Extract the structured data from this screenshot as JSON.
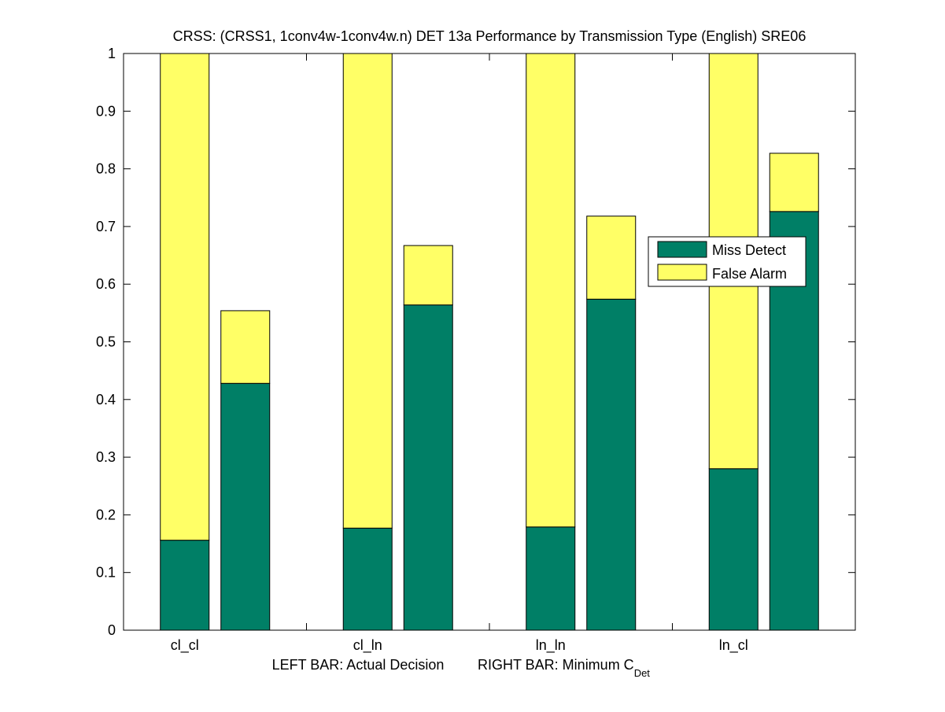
{
  "chart_data": {
    "type": "bar",
    "stacked": true,
    "title": "CRSS: (CRSS1, 1conv4w-1conv4w.n) DET 13a Performance by Transmission Type (English) SRE06",
    "xlabel": {
      "left": "LEFT BAR: Actual Decision",
      "right_prefix": "RIGHT BAR: Minimum C",
      "right_subscript": "Det"
    },
    "ylabel": "",
    "ylim": [
      0,
      1
    ],
    "yticks": [
      0,
      0.1,
      0.2,
      0.3,
      0.4,
      0.5,
      0.6,
      0.7,
      0.8,
      0.9,
      1
    ],
    "ytick_labels": [
      "0",
      "0.1",
      "0.2",
      "0.3",
      "0.4",
      "0.5",
      "0.6",
      "0.7",
      "0.8",
      "0.9",
      "1"
    ],
    "categories": [
      "cl_cl",
      "cl_ln",
      "ln_ln",
      "ln_cl"
    ],
    "bars_per_category": [
      "Actual Decision",
      "Minimum C_Det"
    ],
    "series": [
      {
        "name": "Miss Detect",
        "color": "#007f66",
        "actual": [
          0.156,
          0.177,
          0.179,
          0.28
        ],
        "minimum": [
          0.428,
          0.564,
          0.574,
          0.726
        ]
      },
      {
        "name": "False Alarm",
        "color": "#ffff66",
        "actual": [
          0.844,
          0.823,
          0.821,
          0.72
        ],
        "minimum": [
          0.126,
          0.103,
          0.144,
          0.101
        ]
      }
    ],
    "legend": {
      "placement": "right",
      "entries": [
        "Miss Detect",
        "False Alarm"
      ]
    },
    "grid": false
  }
}
